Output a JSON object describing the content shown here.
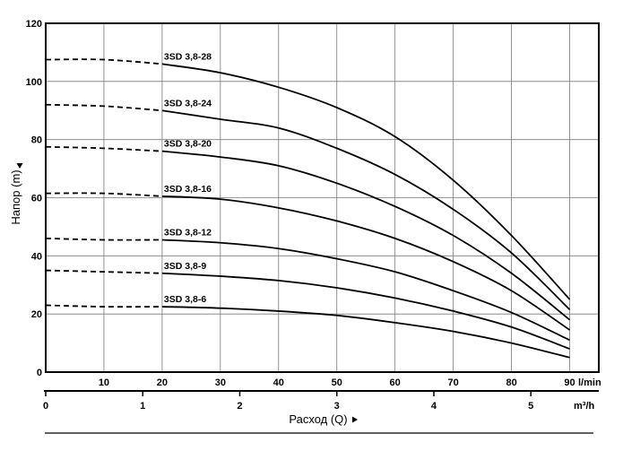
{
  "chart_data": {
    "type": "line",
    "ylabel": "Напор (m)",
    "xlabel": "Расход (Q)",
    "ylim": [
      0,
      120
    ],
    "y_ticks": [
      "0",
      "20",
      "40",
      "60",
      "80",
      "100",
      "120"
    ],
    "x_lmin_range": [
      0,
      95
    ],
    "x_lmin_ticks": [
      "10",
      "20",
      "30",
      "40",
      "50",
      "60",
      "70",
      "80",
      "90"
    ],
    "x_lmin_unit": "l/min",
    "x_m3h_ticks": [
      "0",
      "1",
      "2",
      "3",
      "4",
      "5"
    ],
    "x_m3h_unit": "m³/h",
    "grid": true,
    "series": [
      {
        "name": "3SD 3,8-28",
        "dashed_until": 20,
        "x": [
          0,
          10,
          20,
          30,
          40,
          50,
          60,
          70,
          80,
          90
        ],
        "values": [
          107.5,
          107.5,
          106,
          103,
          98,
          91,
          81,
          66,
          47,
          25
        ]
      },
      {
        "name": "3SD 3,8-24",
        "dashed_until": 20,
        "x": [
          0,
          10,
          20,
          30,
          40,
          50,
          60,
          70,
          80,
          90
        ],
        "values": [
          92,
          91.5,
          90,
          87,
          84,
          77,
          68,
          56,
          41,
          21.5
        ]
      },
      {
        "name": "3SD 3,8-20",
        "dashed_until": 20,
        "x": [
          0,
          10,
          20,
          30,
          40,
          50,
          60,
          70,
          80,
          90
        ],
        "values": [
          77.5,
          77,
          76,
          74,
          71,
          65,
          57,
          47,
          34,
          18
        ]
      },
      {
        "name": "3SD 3,8-16",
        "dashed_until": 20,
        "x": [
          0,
          10,
          20,
          30,
          40,
          50,
          60,
          70,
          80,
          90
        ],
        "values": [
          61.5,
          61.5,
          60.5,
          59.5,
          56.5,
          52,
          46,
          38,
          28,
          14.5
        ]
      },
      {
        "name": "3SD 3,8-12",
        "dashed_until": 20,
        "x": [
          0,
          10,
          20,
          30,
          40,
          50,
          60,
          70,
          80,
          90
        ],
        "values": [
          46,
          45.5,
          45.5,
          44.5,
          42.5,
          39,
          34.5,
          28,
          20.5,
          11
        ]
      },
      {
        "name": "3SD 3,8-9",
        "dashed_until": 20,
        "x": [
          0,
          10,
          20,
          30,
          40,
          50,
          60,
          70,
          80,
          90
        ],
        "values": [
          35,
          34.5,
          34,
          33,
          31.5,
          29,
          25.5,
          21,
          15.5,
          8
        ]
      },
      {
        "name": "3SD 3,8-6",
        "dashed_until": 20,
        "x": [
          0,
          10,
          20,
          30,
          40,
          50,
          60,
          70,
          80,
          90
        ],
        "values": [
          23,
          22.5,
          22.5,
          22,
          21,
          19.5,
          17,
          14,
          10,
          5
        ]
      }
    ]
  }
}
